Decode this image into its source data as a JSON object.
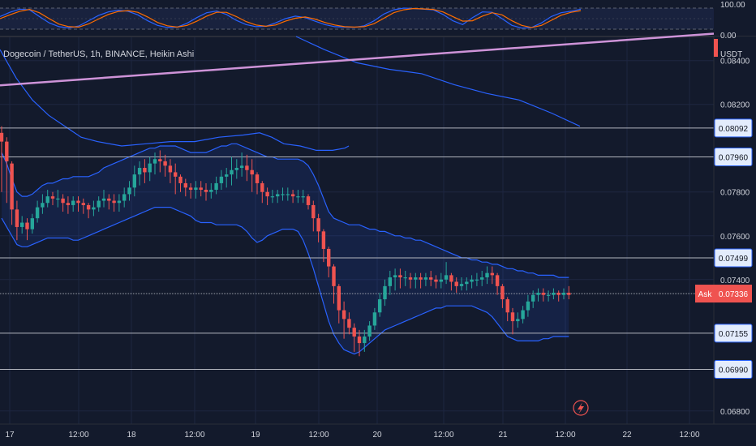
{
  "header": {
    "title": "Dogecoin / TetherUS, 1h, BINANCE, Heikin Ashi",
    "currency": "USDT"
  },
  "colors": {
    "background": "#131a2c",
    "candle_up": "#26a69a",
    "candle_down": "#ef5350",
    "bollinger": "#2962ff",
    "trendline": "#ce93d8",
    "stoch_k": "#2962ff",
    "stoch_d": "#ff6d00"
  },
  "oscillator": {
    "upper_label": "100.00",
    "lower_label": "0.00",
    "k": [
      60,
      80,
      95,
      92,
      60,
      30,
      12,
      6,
      15,
      40,
      65,
      82,
      90,
      85,
      68,
      40,
      18,
      8,
      10,
      28,
      55,
      78,
      86,
      70,
      42,
      22,
      12,
      14,
      30,
      50,
      62,
      55,
      38,
      22,
      12,
      10,
      9,
      16,
      40,
      72,
      92,
      100,
      98,
      95,
      92,
      70,
      40,
      22,
      55,
      82,
      80,
      50,
      18,
      5,
      8,
      30,
      60,
      78,
      85,
      95
    ],
    "d": [
      50,
      68,
      85,
      94,
      78,
      50,
      24,
      12,
      10,
      25,
      48,
      70,
      84,
      88,
      80,
      58,
      32,
      16,
      10,
      18,
      38,
      62,
      80,
      80,
      60,
      36,
      20,
      14,
      20,
      38,
      52,
      58,
      48,
      32,
      20,
      12,
      10,
      12,
      26,
      52,
      78,
      92,
      98,
      96,
      94,
      82,
      60,
      38,
      40,
      62,
      78,
      68,
      40,
      18,
      8,
      18,
      42,
      66,
      80,
      88
    ]
  },
  "price_axis": {
    "ticks": [
      "0.08400",
      "0.08200",
      "0.07800",
      "0.07600",
      "0.07400",
      "0.06800"
    ],
    "ask_label": "Ask",
    "ask_price": "0.07336"
  },
  "levels": [
    {
      "price": 0.08092,
      "label": "0.08092"
    },
    {
      "price": 0.0796,
      "label": "0.07960"
    },
    {
      "price": 0.07499,
      "label": "0.07499"
    },
    {
      "price": 0.07155,
      "label": "0.07155"
    },
    {
      "price": 0.0699,
      "label": "0.06990"
    }
  ],
  "time_axis": {
    "labels": [
      "17",
      "12:00",
      "18",
      "12:00",
      "19",
      "12:00",
      "20",
      "12:00",
      "21",
      "12:00",
      "22",
      "12:00"
    ]
  },
  "chart_data": {
    "type": "candlestick",
    "title": "Dogecoin / TetherUS, 1h, BINANCE, Heikin Ashi",
    "interval": "1h",
    "ylim": [
      0.0674,
      0.0851
    ],
    "y_unit": "USDT",
    "x_labels": [
      "17",
      "12:00",
      "18",
      "12:00",
      "19",
      "12:00",
      "20",
      "12:00",
      "21",
      "12:00",
      "22",
      "12:00"
    ],
    "candles": [
      [
        0.0807,
        0.0803,
        0.081,
        0.078
      ],
      [
        0.0803,
        0.0794,
        0.0805,
        0.0775
      ],
      [
        0.0793,
        0.0772,
        0.0794,
        0.0765
      ],
      [
        0.0772,
        0.0764,
        0.0776,
        0.0758
      ],
      [
        0.0764,
        0.0766,
        0.0769,
        0.0761
      ],
      [
        0.0766,
        0.0763,
        0.0768,
        0.0758
      ],
      [
        0.0763,
        0.0768,
        0.077,
        0.0761
      ],
      [
        0.0768,
        0.0773,
        0.0776,
        0.0766
      ],
      [
        0.0773,
        0.0775,
        0.0779,
        0.077
      ],
      [
        0.0775,
        0.0778,
        0.0781,
        0.0773
      ],
      [
        0.0778,
        0.0777,
        0.078,
        0.0774
      ],
      [
        0.0777,
        0.0777,
        0.0781,
        0.0773
      ],
      [
        0.0777,
        0.0775,
        0.0779,
        0.0771
      ],
      [
        0.0775,
        0.0774,
        0.0778,
        0.077
      ],
      [
        0.0774,
        0.0776,
        0.0778,
        0.0771
      ],
      [
        0.0776,
        0.0775,
        0.0778,
        0.0771
      ],
      [
        0.0775,
        0.0774,
        0.0777,
        0.077
      ],
      [
        0.0774,
        0.0772,
        0.0775,
        0.0768
      ],
      [
        0.0772,
        0.0773,
        0.0776,
        0.0769
      ],
      [
        0.0773,
        0.0776,
        0.0778,
        0.0771
      ],
      [
        0.0776,
        0.0777,
        0.0781,
        0.0773
      ],
      [
        0.0777,
        0.0776,
        0.0779,
        0.0772
      ],
      [
        0.0776,
        0.0775,
        0.0779,
        0.0771
      ],
      [
        0.0775,
        0.0776,
        0.0779,
        0.0771
      ],
      [
        0.0776,
        0.0779,
        0.0782,
        0.0773
      ],
      [
        0.0779,
        0.0782,
        0.0785,
        0.0776
      ],
      [
        0.0782,
        0.0788,
        0.0792,
        0.0778
      ],
      [
        0.0788,
        0.0791,
        0.0794,
        0.0783
      ],
      [
        0.0791,
        0.0789,
        0.0795,
        0.0784
      ],
      [
        0.0789,
        0.0793,
        0.0796,
        0.0785
      ],
      [
        0.0793,
        0.0795,
        0.0798,
        0.0788
      ],
      [
        0.0795,
        0.0794,
        0.0799,
        0.0789
      ],
      [
        0.0794,
        0.0792,
        0.0797,
        0.0787
      ],
      [
        0.0792,
        0.0789,
        0.0795,
        0.0784
      ],
      [
        0.0789,
        0.0787,
        0.0793,
        0.0779
      ],
      [
        0.0787,
        0.0784,
        0.0788,
        0.078
      ],
      [
        0.0784,
        0.0782,
        0.0786,
        0.0778
      ],
      [
        0.0782,
        0.0781,
        0.0784,
        0.0777
      ],
      [
        0.0781,
        0.0782,
        0.0785,
        0.0777
      ],
      [
        0.0782,
        0.0781,
        0.0785,
        0.0778
      ],
      [
        0.0781,
        0.078,
        0.0784,
        0.0776
      ],
      [
        0.078,
        0.0781,
        0.0784,
        0.0777
      ],
      [
        0.0781,
        0.0784,
        0.0787,
        0.0779
      ],
      [
        0.0784,
        0.0787,
        0.079,
        0.0781
      ],
      [
        0.0787,
        0.0788,
        0.0791,
        0.0782
      ],
      [
        0.0788,
        0.079,
        0.0796,
        0.0783
      ],
      [
        0.079,
        0.0791,
        0.0795,
        0.0786
      ],
      [
        0.0791,
        0.0792,
        0.0798,
        0.0787
      ],
      [
        0.0792,
        0.079,
        0.0797,
        0.0785
      ],
      [
        0.079,
        0.0788,
        0.0795,
        0.078
      ],
      [
        0.0788,
        0.0784,
        0.0789,
        0.0779
      ],
      [
        0.0784,
        0.078,
        0.0785,
        0.0775
      ],
      [
        0.078,
        0.0778,
        0.0782,
        0.0774
      ],
      [
        0.0778,
        0.0778,
        0.0781,
        0.0775
      ],
      [
        0.0778,
        0.0779,
        0.0781,
        0.0775
      ],
      [
        0.0779,
        0.0779,
        0.0782,
        0.0776
      ],
      [
        0.0779,
        0.0779,
        0.0782,
        0.0776
      ],
      [
        0.0779,
        0.0778,
        0.0781,
        0.0775
      ],
      [
        0.0778,
        0.0778,
        0.0781,
        0.0775
      ],
      [
        0.0778,
        0.0778,
        0.0781,
        0.0775
      ],
      [
        0.0778,
        0.0774,
        0.0779,
        0.0772
      ],
      [
        0.0774,
        0.0768,
        0.0776,
        0.0762
      ],
      [
        0.0768,
        0.0762,
        0.077,
        0.0757
      ],
      [
        0.0762,
        0.0754,
        0.0763,
        0.0748
      ],
      [
        0.0754,
        0.0746,
        0.0755,
        0.0741
      ],
      [
        0.0746,
        0.0737,
        0.0747,
        0.0729
      ],
      [
        0.0737,
        0.0726,
        0.0738,
        0.072
      ],
      [
        0.0726,
        0.0722,
        0.073,
        0.0713
      ],
      [
        0.0722,
        0.0718,
        0.0725,
        0.0715
      ],
      [
        0.0718,
        0.0714,
        0.072,
        0.0707
      ],
      [
        0.0714,
        0.0711,
        0.0717,
        0.0705
      ],
      [
        0.0711,
        0.0714,
        0.0717,
        0.0707
      ],
      [
        0.0714,
        0.0719,
        0.0721,
        0.0712
      ],
      [
        0.0719,
        0.0725,
        0.0727,
        0.0717
      ],
      [
        0.0725,
        0.0731,
        0.0734,
        0.0723
      ],
      [
        0.0731,
        0.0737,
        0.074,
        0.0728
      ],
      [
        0.0737,
        0.0741,
        0.0744,
        0.0733
      ],
      [
        0.0741,
        0.0742,
        0.0745,
        0.0735
      ],
      [
        0.0742,
        0.0741,
        0.0745,
        0.0736
      ],
      [
        0.0741,
        0.0741,
        0.0744,
        0.0737
      ],
      [
        0.0741,
        0.074,
        0.0743,
        0.0736
      ],
      [
        0.074,
        0.0741,
        0.0743,
        0.0736
      ],
      [
        0.0741,
        0.074,
        0.0743,
        0.0736
      ],
      [
        0.074,
        0.0741,
        0.0743,
        0.0737
      ],
      [
        0.0741,
        0.074,
        0.0744,
        0.0737
      ],
      [
        0.074,
        0.0739,
        0.0742,
        0.0736
      ],
      [
        0.0739,
        0.074,
        0.0743,
        0.0736
      ],
      [
        0.074,
        0.0742,
        0.0748,
        0.0738
      ],
      [
        0.0742,
        0.0739,
        0.0743,
        0.0735
      ],
      [
        0.0739,
        0.0737,
        0.0741,
        0.0734
      ],
      [
        0.0737,
        0.0738,
        0.0741,
        0.0735
      ],
      [
        0.0738,
        0.0739,
        0.0741,
        0.0735
      ],
      [
        0.0739,
        0.074,
        0.0742,
        0.0736
      ],
      [
        0.074,
        0.074,
        0.0743,
        0.0737
      ],
      [
        0.074,
        0.0741,
        0.0744,
        0.0737
      ],
      [
        0.0741,
        0.0743,
        0.0746,
        0.0738
      ],
      [
        0.0743,
        0.0742,
        0.0746,
        0.0738
      ],
      [
        0.0742,
        0.0737,
        0.0743,
        0.0733
      ],
      [
        0.0737,
        0.0731,
        0.0738,
        0.0727
      ],
      [
        0.0731,
        0.0725,
        0.0732,
        0.0721
      ],
      [
        0.0725,
        0.0721,
        0.0727,
        0.0715
      ],
      [
        0.0721,
        0.0722,
        0.0725,
        0.0718
      ],
      [
        0.0722,
        0.0726,
        0.0728,
        0.072
      ],
      [
        0.0726,
        0.073,
        0.0733,
        0.0723
      ],
      [
        0.073,
        0.0733,
        0.0735,
        0.0727
      ],
      [
        0.0733,
        0.0734,
        0.0736,
        0.073
      ],
      [
        0.0734,
        0.0733,
        0.0736,
        0.073
      ],
      [
        0.0733,
        0.0733,
        0.0735,
        0.073
      ],
      [
        0.0733,
        0.0734,
        0.0736,
        0.0731
      ],
      [
        0.0734,
        0.0733,
        0.0735,
        0.073
      ],
      [
        0.0733,
        0.0734,
        0.0736,
        0.0731
      ],
      [
        0.0734,
        0.0733,
        0.0737,
        0.0731
      ]
    ],
    "bollinger_upper": [
      0.0798,
      0.0793,
      0.0786,
      0.078,
      0.0778,
      0.0778,
      0.0779,
      0.0781,
      0.0783,
      0.0784,
      0.0784,
      0.0785,
      0.0786,
      0.0786,
      0.0787,
      0.0787,
      0.0787,
      0.0787,
      0.0788,
      0.0789,
      0.0791,
      0.0792,
      0.0793,
      0.0794,
      0.0795,
      0.0796,
      0.0797,
      0.0798,
      0.0799,
      0.08,
      0.08,
      0.0801,
      0.0801,
      0.0801,
      0.0801,
      0.08,
      0.0799,
      0.0798,
      0.0798,
      0.0798,
      0.0798,
      0.0799,
      0.08,
      0.0801,
      0.0801,
      0.0802,
      0.0802,
      0.0801,
      0.08,
      0.0799,
      0.0798,
      0.0797,
      0.0796,
      0.0796,
      0.0795,
      0.0795,
      0.0795,
      0.0795,
      0.0795,
      0.0794,
      0.0792,
      0.0788,
      0.0783,
      0.0777,
      0.0771,
      0.0768,
      0.0767,
      0.0766,
      0.0765,
      0.0765,
      0.0765,
      0.0764,
      0.0763,
      0.0763,
      0.0762,
      0.0762,
      0.0761,
      0.076,
      0.076,
      0.0759,
      0.0759,
      0.0758,
      0.0758,
      0.0757,
      0.0756,
      0.0755,
      0.0754,
      0.0753,
      0.0752,
      0.0751,
      0.075,
      0.075,
      0.0749,
      0.0749,
      0.0748,
      0.0748,
      0.0747,
      0.0747,
      0.0746,
      0.0745,
      0.0745,
      0.0744,
      0.0744,
      0.0743,
      0.0743,
      0.0742,
      0.0742,
      0.0742,
      0.0742,
      0.0741,
      0.0741,
      0.0741
    ],
    "bollinger_lower": [
      0.0768,
      0.0764,
      0.076,
      0.0756,
      0.0755,
      0.0755,
      0.0756,
      0.0757,
      0.0758,
      0.0759,
      0.0759,
      0.0759,
      0.0759,
      0.0759,
      0.0758,
      0.0758,
      0.0759,
      0.076,
      0.0761,
      0.0762,
      0.0763,
      0.0764,
      0.0765,
      0.0766,
      0.0767,
      0.0768,
      0.0769,
      0.077,
      0.0771,
      0.0772,
      0.0773,
      0.0773,
      0.0773,
      0.0773,
      0.0772,
      0.0771,
      0.077,
      0.0769,
      0.0767,
      0.0766,
      0.0766,
      0.0766,
      0.0765,
      0.0765,
      0.0765,
      0.0765,
      0.0765,
      0.0764,
      0.0762,
      0.0759,
      0.0757,
      0.0758,
      0.076,
      0.0761,
      0.0762,
      0.0763,
      0.0763,
      0.0763,
      0.0762,
      0.0758,
      0.0752,
      0.0745,
      0.0737,
      0.0729,
      0.0721,
      0.0715,
      0.0711,
      0.0708,
      0.0707,
      0.0706,
      0.0707,
      0.0709,
      0.0711,
      0.0713,
      0.0715,
      0.0717,
      0.0718,
      0.0719,
      0.072,
      0.0721,
      0.0722,
      0.0723,
      0.0724,
      0.0725,
      0.0726,
      0.0727,
      0.0727,
      0.0728,
      0.0728,
      0.0728,
      0.0728,
      0.0728,
      0.0728,
      0.0727,
      0.0726,
      0.0725,
      0.0723,
      0.072,
      0.0717,
      0.0714,
      0.0713,
      0.0712,
      0.0712,
      0.0712,
      0.0712,
      0.0712,
      0.0713,
      0.0713,
      0.0714,
      0.0714,
      0.0714,
      0.0714
    ],
    "upper_curve": [
      [
        0,
        0.0845
      ],
      [
        20,
        0.0832
      ],
      [
        40,
        0.0822
      ],
      [
        60,
        0.0815
      ],
      [
        80,
        0.081
      ],
      [
        100,
        0.0805
      ],
      [
        120,
        0.0803
      ],
      [
        150,
        0.0801
      ],
      [
        180,
        0.0802
      ],
      [
        210,
        0.0803
      ],
      [
        240,
        0.0803
      ],
      [
        270,
        0.0805
      ],
      [
        300,
        0.0806
      ],
      [
        320,
        0.0807
      ],
      [
        335,
        0.0805
      ],
      [
        350,
        0.0802
      ],
      [
        370,
        0.0801
      ],
      [
        390,
        0.0799
      ],
      [
        410,
        0.0799
      ],
      [
        425,
        0.08
      ],
      [
        430,
        0.0801
      ]
    ],
    "ma_line": [
      [
        365,
        0.0851
      ],
      [
        400,
        0.0845
      ],
      [
        440,
        0.0839
      ],
      [
        480,
        0.0836
      ],
      [
        520,
        0.0834
      ],
      [
        560,
        0.0829
      ],
      [
        600,
        0.0825
      ],
      [
        640,
        0.0822
      ],
      [
        680,
        0.0816
      ],
      [
        715,
        0.081
      ]
    ],
    "trendline": [
      [
        0,
        0.08287
      ],
      [
        880,
        0.08523
      ]
    ]
  },
  "markers": {
    "flash_icon": "lightning-icon"
  }
}
